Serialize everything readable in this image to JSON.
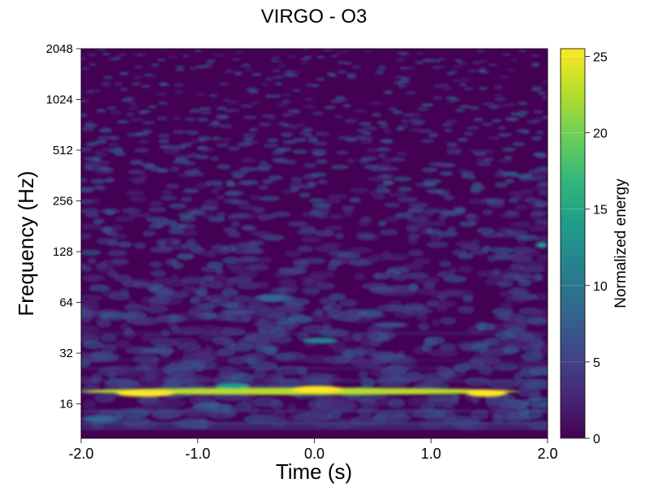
{
  "chart_data": {
    "type": "heatmap",
    "title": "VIRGO - O3",
    "xlabel": "Time (s)",
    "ylabel": "Frequency (Hz)",
    "colorbar_label": "Normalized energy",
    "xlim": [
      -2.0,
      2.0
    ],
    "ylim": [
      10,
      2048
    ],
    "y_scale": "log2",
    "x_ticks": [
      "-2.0",
      "-1.0",
      "0.0",
      "1.0",
      "2.0"
    ],
    "x_tick_values": [
      -2.0,
      -1.0,
      0.0,
      1.0,
      2.0
    ],
    "y_ticks": [
      "2048",
      "1024",
      "512",
      "256",
      "128",
      "64",
      "32",
      "16"
    ],
    "y_tick_values": [
      2048,
      1024,
      512,
      256,
      128,
      64,
      32,
      16
    ],
    "colorbar_ticks": [
      "25",
      "20",
      "15",
      "10",
      "5",
      "0"
    ],
    "colorbar_tick_values": [
      25,
      20,
      15,
      10,
      5,
      0
    ],
    "colorbar_range": [
      0,
      25.5
    ],
    "colormap": [
      "#440154",
      "#482878",
      "#3e4989",
      "#31688e",
      "#26828e",
      "#1f9e89",
      "#35b779",
      "#6ece58",
      "#b5de2b",
      "#fde725"
    ],
    "grid": false,
    "features": [
      {
        "t_start": -2.0,
        "t_end": 1.75,
        "f": 19,
        "energy": 24
      },
      {
        "t_start": -1.7,
        "t_end": -1.2,
        "f": 18.5,
        "energy": 25
      },
      {
        "t_start": -0.2,
        "t_end": 0.25,
        "f": 19.5,
        "energy": 25
      },
      {
        "t_start": 1.3,
        "t_end": 1.65,
        "f": 18.5,
        "energy": 25
      },
      {
        "t_start": -0.85,
        "t_end": -0.55,
        "f": 20.5,
        "energy": 13
      },
      {
        "t_start": -0.1,
        "t_end": 0.2,
        "f": 38,
        "energy": 12
      },
      {
        "t_start": -0.5,
        "t_end": -0.2,
        "f": 68,
        "energy": 8
      },
      {
        "t_start": 1.9,
        "t_end": 2.0,
        "f": 140,
        "energy": 14
      },
      {
        "t_start": -2.0,
        "t_end": -1.7,
        "f": 13,
        "energy": 9
      },
      {
        "t_start": -1.5,
        "t_end": -1.2,
        "f": 33,
        "energy": 7
      },
      {
        "t_start": -0.8,
        "t_end": -0.5,
        "f": 56,
        "energy": 7
      },
      {
        "t_start": 0.5,
        "t_end": 0.8,
        "f": 47,
        "energy": 6
      }
    ]
  }
}
